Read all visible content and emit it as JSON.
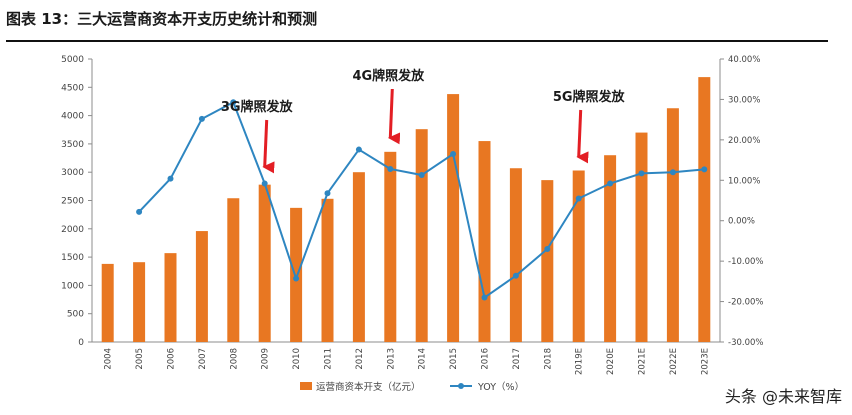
{
  "title": "图表 13：三大运营商资本开支历史统计和预测",
  "watermark": "头条 @未来智库",
  "colors": {
    "bar": "#E87722",
    "line": "#2E86C1",
    "annotation": "#E31E24",
    "annotation_text": "#1a1a1a",
    "axis": "#8c8c8c",
    "tick": "#444444"
  },
  "chart_data": {
    "type": "bar",
    "categories": [
      "2004",
      "2005",
      "2006",
      "2007",
      "2008",
      "2009",
      "2010",
      "2011",
      "2012",
      "2013",
      "2014",
      "2015",
      "2016",
      "2017",
      "2018",
      "2019E",
      "2020E",
      "2021E",
      "2022E",
      "2023E"
    ],
    "series": [
      {
        "name": "运营商资本开支（亿元）",
        "type": "bar",
        "axis": "left",
        "values": [
          1380,
          1410,
          1570,
          1960,
          2540,
          2780,
          2370,
          2530,
          3000,
          3360,
          3760,
          4380,
          3550,
          3070,
          2860,
          3030,
          3300,
          3700,
          4130,
          4680
        ]
      },
      {
        "name": "YOY（%）",
        "type": "line",
        "axis": "right",
        "values": [
          null,
          2.2,
          10.4,
          25.2,
          29.3,
          9.2,
          -14.3,
          6.8,
          17.6,
          12.8,
          11.3,
          16.5,
          -19.0,
          -13.6,
          -7.0,
          5.5,
          9.2,
          11.7,
          12.0,
          12.7
        ]
      }
    ],
    "yleft": {
      "lim": [
        0,
        5000
      ],
      "ticks": [
        "0",
        "500",
        "1000",
        "1500",
        "2000",
        "2500",
        "3000",
        "3500",
        "4000",
        "4500",
        "5000"
      ]
    },
    "yright": {
      "lim": [
        -30,
        40
      ],
      "ticks": [
        "-30.00%",
        "-20.00%",
        "-10.00%",
        "0.00%",
        "10.00%",
        "20.00%",
        "30.00%",
        "40.00%"
      ]
    },
    "annotations": [
      {
        "text": "3G牌照发放",
        "category": "2009"
      },
      {
        "text": "4G牌照发放",
        "category": "2013"
      },
      {
        "text": "5G牌照发放",
        "category": "2019E"
      }
    ],
    "legend_position": "bottom"
  }
}
